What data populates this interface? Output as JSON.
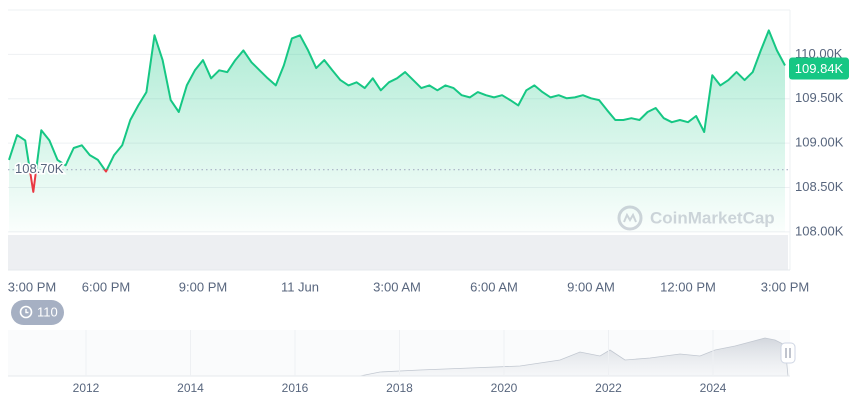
{
  "chart_data": {
    "type": "line",
    "categories": [
      "3:00 PM",
      null,
      null,
      null,
      null,
      null,
      null,
      null,
      null,
      null,
      null,
      null,
      "6:00 PM",
      null,
      null,
      null,
      null,
      null,
      null,
      null,
      null,
      null,
      null,
      null,
      "9:00 PM",
      null,
      null,
      null,
      null,
      null,
      null,
      null,
      null,
      null,
      null,
      null,
      "11 Jun",
      null,
      null,
      null,
      null,
      null,
      null,
      null,
      null,
      null,
      null,
      null,
      "3:00 AM",
      null,
      null,
      null,
      null,
      null,
      null,
      null,
      null,
      null,
      null,
      null,
      "6:00 AM",
      null,
      null,
      null,
      null,
      null,
      null,
      null,
      null,
      null,
      null,
      null,
      "9:00 AM",
      null,
      null,
      null,
      null,
      null,
      null,
      null,
      null,
      null,
      null,
      null,
      "12:00 PM",
      null,
      null,
      null,
      null,
      null,
      null,
      null,
      null,
      null,
      null,
      null,
      "3:00 PM"
    ],
    "series": [
      {
        "color": "#16c784",
        "values": [
          108810,
          109090,
          109030,
          108450,
          109145,
          109030,
          108810,
          108750,
          108945,
          108975,
          108865,
          108810,
          108680,
          108865,
          108975,
          109260,
          109425,
          109575,
          110215,
          109935,
          109485,
          109350,
          109650,
          109820,
          109935,
          109730,
          109820,
          109800,
          109935,
          110045,
          109910,
          109820,
          109730,
          109650,
          109875,
          110180,
          110215,
          110045,
          109845,
          109935,
          109820,
          109710,
          109650,
          109685,
          109620,
          109730,
          109595,
          109685,
          109730,
          109800,
          109710,
          109620,
          109650,
          109595,
          109650,
          109620,
          109540,
          109515,
          109575,
          109540,
          109515,
          109540,
          109485,
          109425,
          109595,
          109650,
          109575,
          109515,
          109540,
          109505,
          109515,
          109540,
          109505,
          109485,
          109370,
          109260,
          109260,
          109280,
          109260,
          109350,
          109395,
          109280,
          109235,
          109260,
          109235,
          109305,
          109125,
          109765,
          109650,
          109710,
          109800,
          109710,
          109800,
          110045,
          110270,
          110045,
          109875
        ]
      }
    ],
    "below_color": "#ea3943",
    "ylim": [
      107750,
      110500
    ],
    "yticks": [
      {
        "value": 108000,
        "label": "108.00K"
      },
      {
        "value": 108500,
        "label": "108.50K"
      },
      {
        "value": 109000,
        "label": "109.00K"
      },
      {
        "value": 109500,
        "label": "109.50K"
      },
      {
        "value": 110000,
        "label": "110.00K"
      }
    ],
    "grid": true,
    "baseline": {
      "value": 108700,
      "label": "108.70K"
    },
    "current_price": {
      "value": 109840,
      "label": "109.84K"
    },
    "watermark": "CoinMarketCap"
  },
  "history_button": "110",
  "navigator": {
    "x_labels": [
      "2012",
      "2014",
      "2016",
      "2018",
      "2020",
      "2022",
      "2024"
    ]
  }
}
